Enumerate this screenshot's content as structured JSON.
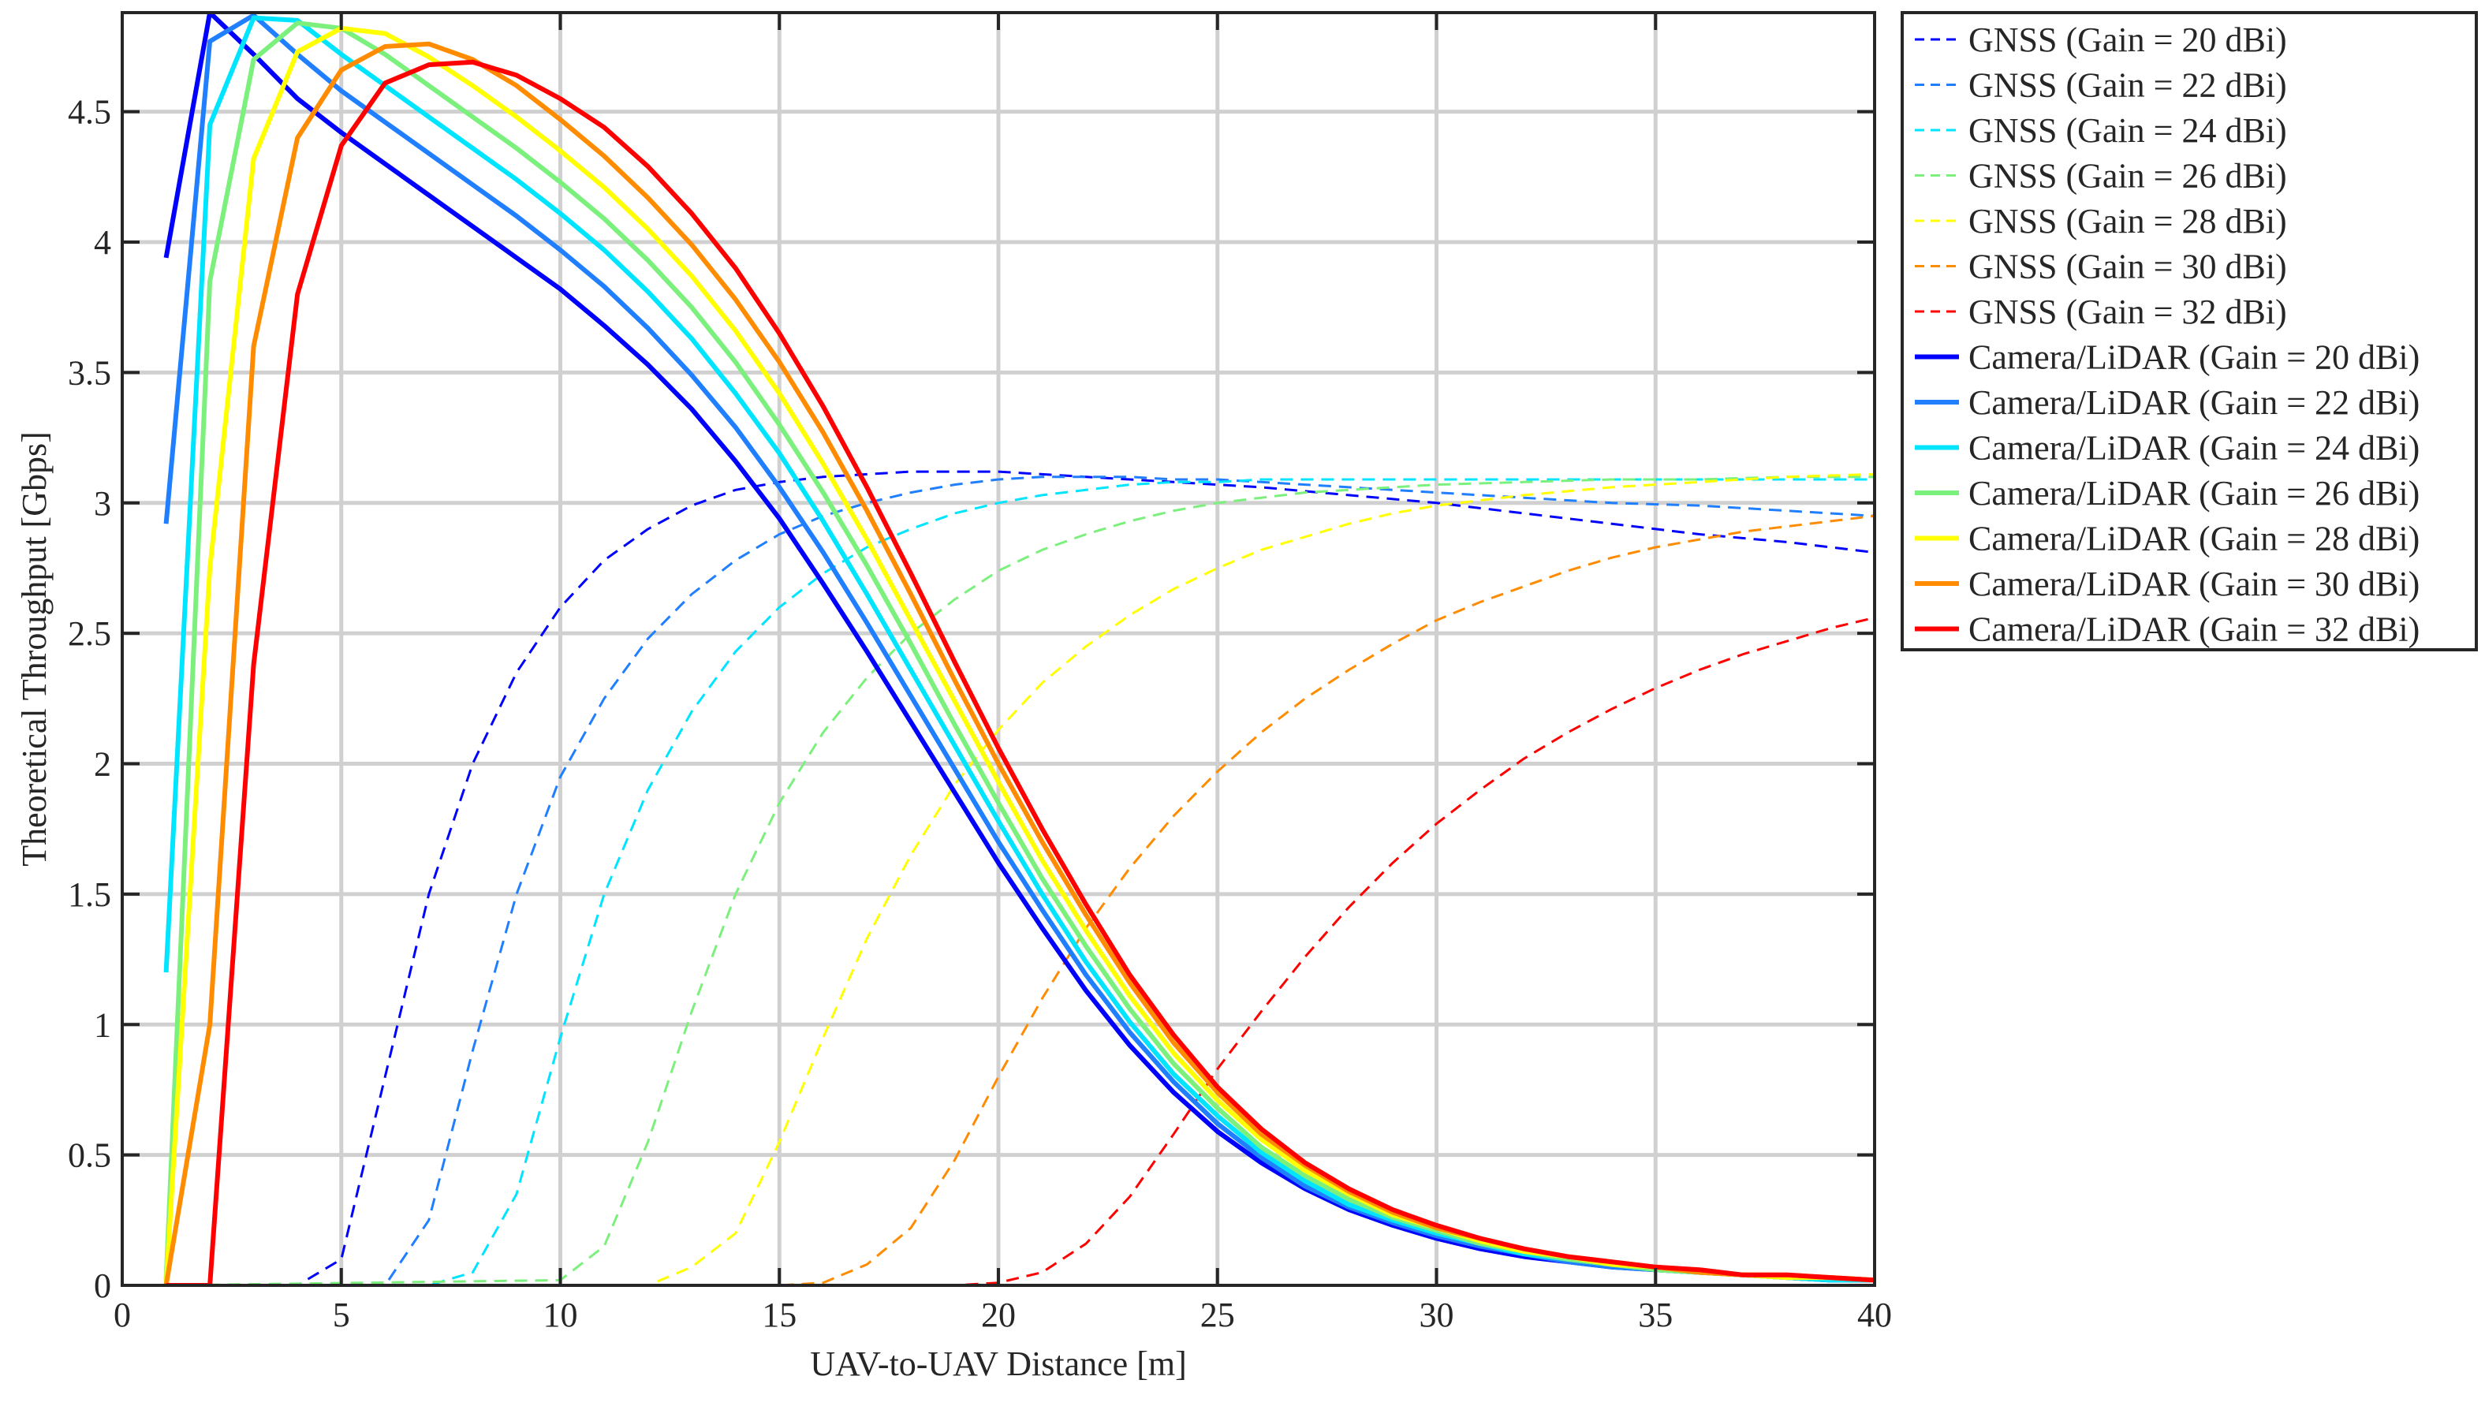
{
  "chart_data": {
    "type": "line",
    "title": "",
    "xlabel": "UAV-to-UAV Distance [m]",
    "ylabel": "Theoretical Throughput [Gbps]",
    "xlim": [
      0,
      40
    ],
    "ylim": [
      0,
      4.88
    ],
    "xticks": [
      0,
      5,
      10,
      15,
      20,
      25,
      30,
      35,
      40
    ],
    "xtick_labels": [
      "0",
      "5",
      "10",
      "15",
      "20",
      "25",
      "30",
      "35",
      "40"
    ],
    "yticks": [
      0,
      0.5,
      1,
      1.5,
      2,
      2.5,
      3,
      3.5,
      4,
      4.5
    ],
    "ytick_labels": [
      "0",
      "0.5",
      "1",
      "1.5",
      "2",
      "2.5",
      "3",
      "3.5",
      "4",
      "4.5"
    ],
    "grid": true,
    "legend_position": "outside-top-right",
    "series": [
      {
        "name": "GNSS (Gain = 20 dBi)",
        "color": "#0000ff",
        "style": "dashed",
        "x": [
          1,
          4,
          5,
          6,
          7,
          8,
          9,
          10,
          11,
          12,
          13,
          14,
          15,
          16,
          17,
          18,
          19,
          20,
          21,
          22,
          23,
          24,
          25,
          26,
          28,
          30,
          32,
          34,
          36,
          38,
          40
        ],
        "y": [
          0,
          0,
          0.1,
          0.8,
          1.5,
          2.0,
          2.35,
          2.6,
          2.78,
          2.9,
          2.99,
          3.05,
          3.08,
          3.1,
          3.11,
          3.12,
          3.12,
          3.12,
          3.11,
          3.1,
          3.09,
          3.08,
          3.07,
          3.06,
          3.03,
          3.0,
          2.96,
          2.92,
          2.88,
          2.85,
          2.81
        ]
      },
      {
        "name": "GNSS (Gain = 22 dBi)",
        "color": "#1f7fff",
        "style": "dashed",
        "x": [
          1,
          5,
          6,
          7,
          8,
          9,
          10,
          11,
          12,
          13,
          14,
          15,
          16,
          17,
          18,
          19,
          20,
          21,
          22,
          23,
          24,
          25,
          26,
          28,
          30,
          32,
          34,
          36,
          38,
          40
        ],
        "y": [
          0,
          0,
          0,
          0.25,
          0.9,
          1.5,
          1.95,
          2.25,
          2.48,
          2.65,
          2.78,
          2.88,
          2.95,
          3.0,
          3.04,
          3.07,
          3.09,
          3.1,
          3.1,
          3.1,
          3.09,
          3.09,
          3.08,
          3.06,
          3.04,
          3.02,
          3.0,
          2.99,
          2.97,
          2.95
        ]
      },
      {
        "name": "GNSS (Gain = 24 dBi)",
        "color": "#00e5ff",
        "style": "dashed",
        "x": [
          1,
          7,
          8,
          9,
          10,
          11,
          12,
          13,
          14,
          15,
          16,
          17,
          18,
          19,
          20,
          21,
          22,
          23,
          24,
          25,
          26,
          28,
          30,
          32,
          34,
          36,
          38,
          40
        ],
        "y": [
          0,
          0,
          0.05,
          0.35,
          0.95,
          1.5,
          1.9,
          2.2,
          2.43,
          2.6,
          2.73,
          2.83,
          2.9,
          2.96,
          3.0,
          3.03,
          3.05,
          3.07,
          3.08,
          3.08,
          3.09,
          3.09,
          3.09,
          3.09,
          3.09,
          3.09,
          3.09,
          3.09
        ]
      },
      {
        "name": "GNSS (Gain = 26 dBi)",
        "color": "#7cf07c",
        "style": "dashed",
        "x": [
          1,
          10,
          11,
          12,
          13,
          14,
          15,
          16,
          17,
          18,
          19,
          20,
          21,
          22,
          23,
          24,
          25,
          26,
          27,
          28,
          30,
          32,
          34,
          36,
          38,
          40
        ],
        "y": [
          0,
          0.02,
          0.15,
          0.55,
          1.05,
          1.5,
          1.85,
          2.12,
          2.33,
          2.5,
          2.63,
          2.74,
          2.82,
          2.88,
          2.93,
          2.97,
          3.0,
          3.02,
          3.04,
          3.05,
          3.07,
          3.08,
          3.09,
          3.09,
          3.1,
          3.1
        ]
      },
      {
        "name": "GNSS (Gain = 28 dBi)",
        "color": "#ffff00",
        "style": "dashed",
        "x": [
          1,
          12,
          13,
          14,
          15,
          16,
          17,
          18,
          19,
          20,
          21,
          22,
          23,
          24,
          25,
          26,
          27,
          28,
          29,
          30,
          32,
          34,
          36,
          38,
          40
        ],
        "y": [
          0,
          0,
          0.07,
          0.2,
          0.55,
          0.95,
          1.33,
          1.65,
          1.92,
          2.13,
          2.31,
          2.45,
          2.57,
          2.67,
          2.75,
          2.82,
          2.87,
          2.92,
          2.96,
          2.99,
          3.03,
          3.06,
          3.08,
          3.1,
          3.11
        ]
      },
      {
        "name": "GNSS (Gain = 30 dBi)",
        "color": "#ff8c00",
        "style": "dashed",
        "x": [
          1,
          15,
          16,
          17,
          18,
          19,
          20,
          21,
          22,
          23,
          24,
          25,
          26,
          27,
          28,
          29,
          30,
          31,
          32,
          33,
          34,
          35,
          36,
          37,
          38,
          39,
          40
        ],
        "y": [
          0,
          0,
          0.01,
          0.08,
          0.22,
          0.48,
          0.8,
          1.1,
          1.37,
          1.6,
          1.8,
          1.97,
          2.12,
          2.25,
          2.36,
          2.46,
          2.55,
          2.62,
          2.68,
          2.74,
          2.79,
          2.83,
          2.86,
          2.89,
          2.91,
          2.93,
          2.95
        ]
      },
      {
        "name": "GNSS (Gain = 32 dBi)",
        "color": "#ff0000",
        "style": "dashed",
        "x": [
          1,
          19,
          20,
          21,
          22,
          23,
          24,
          25,
          26,
          27,
          28,
          29,
          30,
          31,
          32,
          33,
          34,
          35,
          36,
          37,
          38,
          39,
          40
        ],
        "y": [
          0,
          0,
          0.01,
          0.05,
          0.16,
          0.34,
          0.58,
          0.83,
          1.05,
          1.26,
          1.45,
          1.62,
          1.77,
          1.9,
          2.02,
          2.12,
          2.21,
          2.29,
          2.36,
          2.42,
          2.47,
          2.52,
          2.56
        ]
      },
      {
        "name": "Camera/LiDAR (Gain = 20 dBi)",
        "color": "#0000ff",
        "style": "solid",
        "x": [
          1,
          2,
          3,
          4,
          5,
          6,
          7,
          8,
          9,
          10,
          11,
          12,
          13,
          14,
          15,
          16,
          17,
          18,
          19,
          20,
          21,
          22,
          23,
          24,
          25,
          26,
          27,
          28,
          29,
          30,
          31,
          32,
          33,
          34,
          35,
          36,
          37,
          38,
          39,
          40
        ],
        "y": [
          3.94,
          4.88,
          4.72,
          4.55,
          4.42,
          4.3,
          4.18,
          4.06,
          3.94,
          3.82,
          3.68,
          3.53,
          3.36,
          3.16,
          2.94,
          2.69,
          2.43,
          2.16,
          1.89,
          1.62,
          1.37,
          1.13,
          0.92,
          0.74,
          0.59,
          0.47,
          0.37,
          0.29,
          0.23,
          0.18,
          0.14,
          0.11,
          0.09,
          0.07,
          0.06,
          0.05,
          0.04,
          0.03,
          0.02,
          0.02
        ]
      },
      {
        "name": "Camera/LiDAR (Gain = 22 dBi)",
        "color": "#1f7fff",
        "style": "solid",
        "x": [
          1,
          2,
          3,
          4,
          5,
          6,
          7,
          8,
          9,
          10,
          11,
          12,
          13,
          14,
          15,
          16,
          17,
          18,
          19,
          20,
          21,
          22,
          23,
          24,
          25,
          26,
          27,
          28,
          29,
          30,
          31,
          32,
          33,
          34,
          35,
          36,
          37,
          38,
          39,
          40
        ],
        "y": [
          2.92,
          4.77,
          4.87,
          4.72,
          4.58,
          4.46,
          4.34,
          4.22,
          4.1,
          3.97,
          3.83,
          3.67,
          3.49,
          3.29,
          3.06,
          2.81,
          2.54,
          2.26,
          1.98,
          1.7,
          1.44,
          1.19,
          0.97,
          0.78,
          0.62,
          0.49,
          0.38,
          0.3,
          0.24,
          0.19,
          0.15,
          0.12,
          0.09,
          0.07,
          0.06,
          0.05,
          0.04,
          0.03,
          0.02,
          0.02
        ]
      },
      {
        "name": "Camera/LiDAR (Gain = 24 dBi)",
        "color": "#00e5ff",
        "style": "solid",
        "x": [
          1,
          2,
          3,
          4,
          5,
          6,
          7,
          8,
          9,
          10,
          11,
          12,
          13,
          14,
          15,
          16,
          17,
          18,
          19,
          20,
          21,
          22,
          23,
          24,
          25,
          26,
          27,
          28,
          29,
          30,
          31,
          32,
          33,
          34,
          35,
          36,
          37,
          38,
          39,
          40
        ],
        "y": [
          1.2,
          4.45,
          4.86,
          4.85,
          4.72,
          4.6,
          4.48,
          4.36,
          4.24,
          4.11,
          3.97,
          3.81,
          3.63,
          3.42,
          3.19,
          2.93,
          2.65,
          2.36,
          2.07,
          1.78,
          1.5,
          1.24,
          1.01,
          0.81,
          0.65,
          0.51,
          0.4,
          0.31,
          0.25,
          0.2,
          0.16,
          0.12,
          0.1,
          0.08,
          0.06,
          0.05,
          0.04,
          0.03,
          0.02,
          0.02
        ]
      },
      {
        "name": "Camera/LiDAR (Gain = 26 dBi)",
        "color": "#7cf07c",
        "style": "solid",
        "x": [
          1,
          2,
          3,
          4,
          5,
          6,
          7,
          8,
          9,
          10,
          11,
          12,
          13,
          14,
          15,
          16,
          17,
          18,
          19,
          20,
          21,
          22,
          23,
          24,
          25,
          26,
          27,
          28,
          29,
          30,
          31,
          32,
          33,
          34,
          35,
          36,
          37,
          38,
          39,
          40
        ],
        "y": [
          0.02,
          3.85,
          4.7,
          4.84,
          4.82,
          4.72,
          4.6,
          4.48,
          4.36,
          4.23,
          4.09,
          3.93,
          3.75,
          3.54,
          3.3,
          3.04,
          2.76,
          2.46,
          2.15,
          1.85,
          1.56,
          1.3,
          1.06,
          0.85,
          0.68,
          0.53,
          0.42,
          0.33,
          0.26,
          0.21,
          0.16,
          0.13,
          0.1,
          0.08,
          0.06,
          0.05,
          0.04,
          0.03,
          0.03,
          0.02
        ]
      },
      {
        "name": "Camera/LiDAR (Gain = 28 dBi)",
        "color": "#ffff00",
        "style": "solid",
        "x": [
          1,
          2,
          3,
          4,
          5,
          6,
          7,
          8,
          9,
          10,
          11,
          12,
          13,
          14,
          15,
          16,
          17,
          18,
          19,
          20,
          21,
          22,
          23,
          24,
          25,
          26,
          27,
          28,
          29,
          30,
          31,
          32,
          33,
          34,
          35,
          36,
          37,
          38,
          39,
          40
        ],
        "y": [
          0,
          2.75,
          4.32,
          4.73,
          4.82,
          4.8,
          4.71,
          4.6,
          4.48,
          4.35,
          4.21,
          4.05,
          3.87,
          3.66,
          3.42,
          3.15,
          2.86,
          2.55,
          2.24,
          1.93,
          1.63,
          1.36,
          1.11,
          0.89,
          0.71,
          0.56,
          0.44,
          0.35,
          0.27,
          0.22,
          0.17,
          0.13,
          0.11,
          0.08,
          0.07,
          0.05,
          0.04,
          0.03,
          0.03,
          0.02
        ]
      },
      {
        "name": "Camera/LiDAR (Gain = 30 dBi)",
        "color": "#ff8c00",
        "style": "solid",
        "x": [
          1,
          2,
          3,
          4,
          5,
          6,
          7,
          8,
          9,
          10,
          11,
          12,
          13,
          14,
          15,
          16,
          17,
          18,
          19,
          20,
          21,
          22,
          23,
          24,
          25,
          26,
          27,
          28,
          29,
          30,
          31,
          32,
          33,
          34,
          35,
          36,
          37,
          38,
          39,
          40
        ],
        "y": [
          0,
          1.0,
          3.6,
          4.4,
          4.66,
          4.75,
          4.76,
          4.7,
          4.6,
          4.47,
          4.33,
          4.17,
          3.99,
          3.78,
          3.54,
          3.27,
          2.97,
          2.65,
          2.32,
          2.0,
          1.7,
          1.42,
          1.16,
          0.93,
          0.74,
          0.58,
          0.46,
          0.36,
          0.28,
          0.22,
          0.18,
          0.14,
          0.11,
          0.09,
          0.07,
          0.05,
          0.04,
          0.04,
          0.03,
          0.02
        ]
      },
      {
        "name": "Camera/LiDAR (Gain = 32 dBi)",
        "color": "#ff0000",
        "style": "solid",
        "x": [
          1,
          2,
          3,
          4,
          5,
          6,
          7,
          8,
          9,
          10,
          11,
          12,
          13,
          14,
          15,
          16,
          17,
          18,
          19,
          20,
          21,
          22,
          23,
          24,
          25,
          26,
          27,
          28,
          29,
          30,
          31,
          32,
          33,
          34,
          35,
          36,
          37,
          38,
          39,
          40
        ],
        "y": [
          0,
          0,
          2.38,
          3.8,
          4.37,
          4.61,
          4.68,
          4.69,
          4.64,
          4.55,
          4.44,
          4.29,
          4.11,
          3.9,
          3.65,
          3.37,
          3.06,
          2.73,
          2.39,
          2.06,
          1.75,
          1.46,
          1.19,
          0.96,
          0.76,
          0.6,
          0.47,
          0.37,
          0.29,
          0.23,
          0.18,
          0.14,
          0.11,
          0.09,
          0.07,
          0.06,
          0.04,
          0.04,
          0.03,
          0.02
        ]
      }
    ]
  }
}
